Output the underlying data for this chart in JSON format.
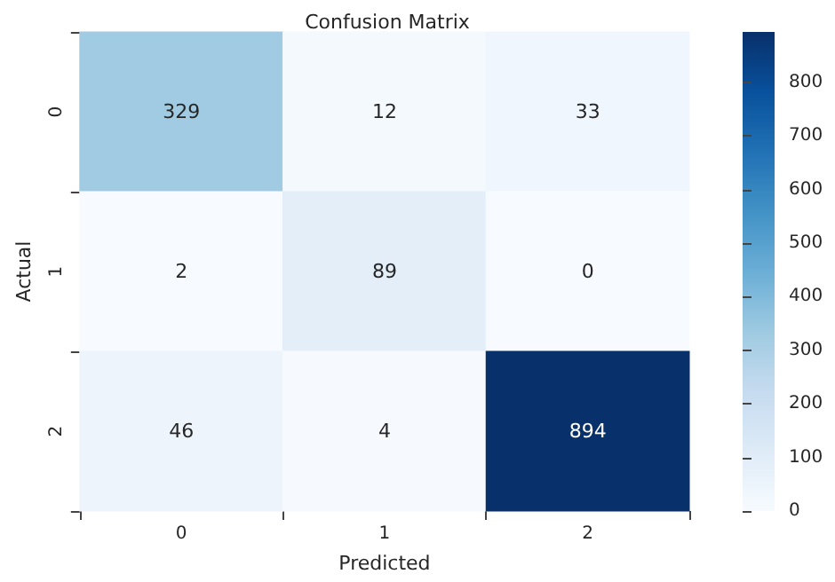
{
  "chart_data": {
    "type": "heatmap",
    "title": "Confusion Matrix",
    "xlabel": "Predicted",
    "ylabel": "Actual",
    "categories": [
      "0",
      "1",
      "2"
    ],
    "y_categories": [
      "0",
      "1",
      "2"
    ],
    "cells": [
      [
        329,
        12,
        33
      ],
      [
        2,
        89,
        0
      ],
      [
        46,
        4,
        894
      ]
    ],
    "data_labels": true,
    "clim": [
      0,
      894
    ],
    "cticks": [
      0,
      100,
      200,
      300,
      400,
      500,
      600,
      700,
      800
    ]
  }
}
